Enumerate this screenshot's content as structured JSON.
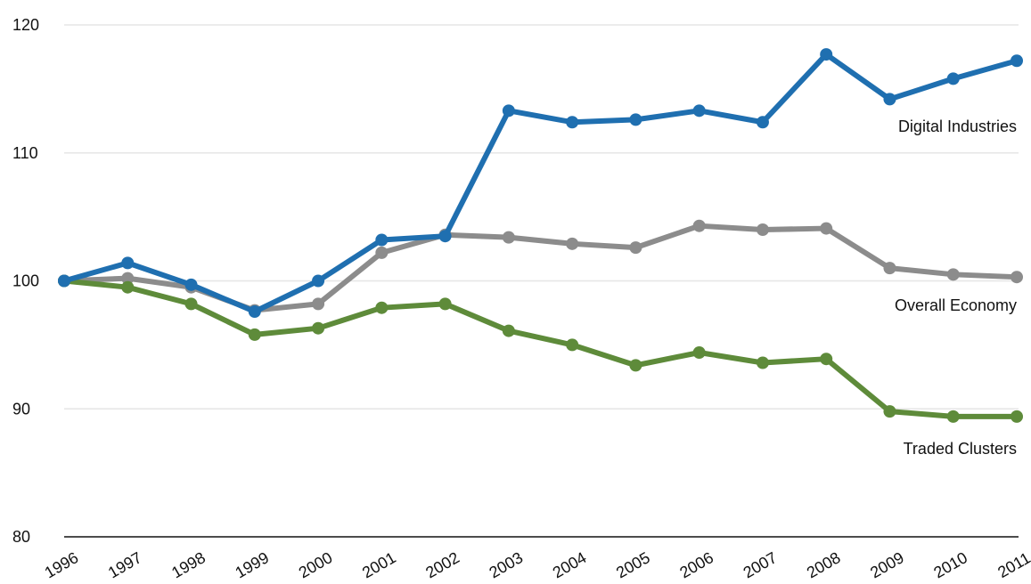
{
  "chart_data": {
    "type": "line",
    "x": [
      "1996",
      "1997",
      "1998",
      "1999",
      "2000",
      "2001",
      "2002",
      "2003",
      "2004",
      "2005",
      "2006",
      "2007",
      "2008",
      "2009",
      "2010",
      "2011"
    ],
    "ylim": [
      80,
      120
    ],
    "yticks": [
      80,
      90,
      100,
      110,
      120
    ],
    "grid": true,
    "series": [
      {
        "name": "Digital Industries",
        "color": "#1f6fb0",
        "values": [
          100,
          101.4,
          99.7,
          97.6,
          100,
          103.2,
          103.5,
          113.3,
          112.4,
          112.6,
          113.3,
          112.4,
          117.7,
          114.2,
          115.8,
          117.2
        ]
      },
      {
        "name": "Overall Economy",
        "color": "#8c8c8c",
        "values": [
          100,
          100.2,
          99.5,
          97.7,
          98.2,
          102.2,
          103.6,
          103.4,
          102.9,
          102.6,
          104.3,
          104.0,
          104.1,
          101.0,
          100.5,
          100.3
        ]
      },
      {
        "name": "Traded Clusters",
        "color": "#5e8b3a",
        "values": [
          100,
          99.5,
          98.2,
          95.8,
          96.3,
          97.9,
          98.2,
          96.1,
          95.0,
          93.4,
          94.4,
          93.6,
          93.9,
          89.8,
          89.4,
          89.4
        ]
      }
    ]
  }
}
